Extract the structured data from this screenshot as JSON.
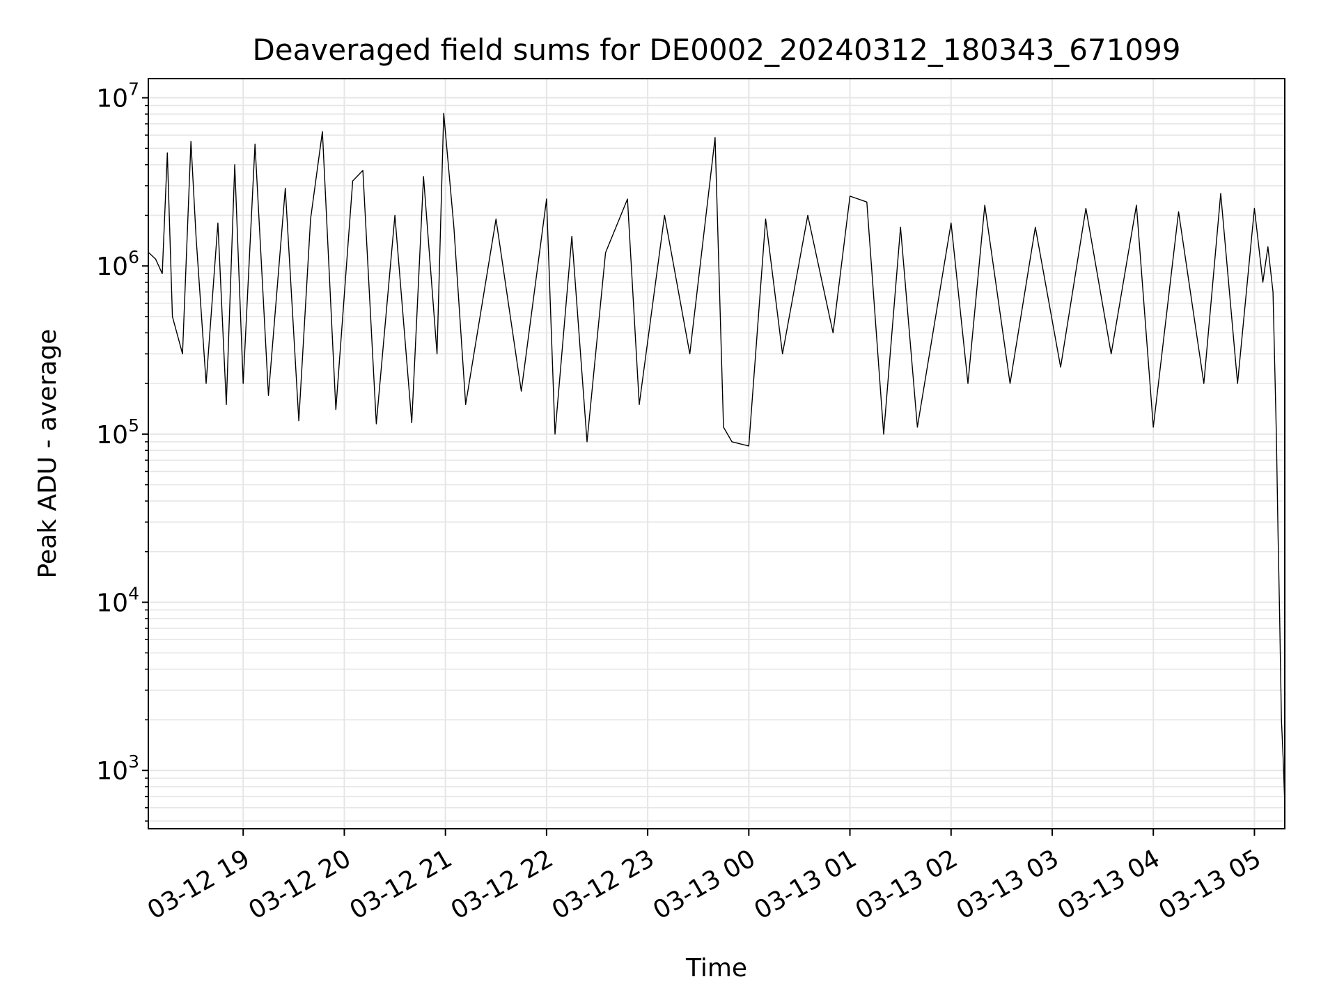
{
  "chart_data": {
    "type": "line",
    "title": "Deaveraged field sums for DE0002_20240312_180343_671099",
    "xlabel": "Time",
    "ylabel": "Peak ADU - average",
    "y_scale": "log",
    "ylim": [
      450,
      13000000
    ],
    "xlim": [
      "2024-03-12 18:03:43",
      "2024-03-13 05:18:00"
    ],
    "grid": true,
    "line_color": "#000000",
    "grid_color": "#e6e6e6",
    "x_ticks": [
      {
        "t": "2024-03-12 19:00",
        "label": "03-12 19"
      },
      {
        "t": "2024-03-12 20:00",
        "label": "03-12 20"
      },
      {
        "t": "2024-03-12 21:00",
        "label": "03-12 21"
      },
      {
        "t": "2024-03-12 22:00",
        "label": "03-12 22"
      },
      {
        "t": "2024-03-12 23:00",
        "label": "03-12 23"
      },
      {
        "t": "2024-03-13 00:00",
        "label": "03-13 00"
      },
      {
        "t": "2024-03-13 01:00",
        "label": "03-13 01"
      },
      {
        "t": "2024-03-13 02:00",
        "label": "03-13 02"
      },
      {
        "t": "2024-03-13 03:00",
        "label": "03-13 03"
      },
      {
        "t": "2024-03-13 04:00",
        "label": "03-13 04"
      },
      {
        "t": "2024-03-13 05:00",
        "label": "03-13 05"
      }
    ],
    "y_ticks": [
      {
        "value": 1000,
        "base": "10",
        "exp": "3"
      },
      {
        "value": 10000,
        "base": "10",
        "exp": "4"
      },
      {
        "value": 100000,
        "base": "10",
        "exp": "5"
      },
      {
        "value": 1000000,
        "base": "10",
        "exp": "6"
      },
      {
        "value": 10000000,
        "base": "10",
        "exp": "7"
      }
    ],
    "series": [
      {
        "points": [
          [
            "2024-03-12 18:04",
            1200000
          ],
          [
            "2024-03-12 18:08",
            1100000
          ],
          [
            "2024-03-12 18:12",
            900000
          ],
          [
            "2024-03-12 18:15",
            4700000
          ],
          [
            "2024-03-12 18:18",
            500000
          ],
          [
            "2024-03-12 18:24",
            300000
          ],
          [
            "2024-03-12 18:29",
            5500000
          ],
          [
            "2024-03-12 18:32",
            1500000
          ],
          [
            "2024-03-12 18:38",
            200000
          ],
          [
            "2024-03-12 18:45",
            1800000
          ],
          [
            "2024-03-12 18:50",
            150000
          ],
          [
            "2024-03-12 18:55",
            4000000
          ],
          [
            "2024-03-12 19:00",
            200000
          ],
          [
            "2024-03-12 19:07",
            5300000
          ],
          [
            "2024-03-12 19:15",
            170000
          ],
          [
            "2024-03-12 19:25",
            2900000
          ],
          [
            "2024-03-12 19:33",
            120000
          ],
          [
            "2024-03-12 19:40",
            1900000
          ],
          [
            "2024-03-12 19:47",
            6300000
          ],
          [
            "2024-03-12 19:55",
            140000
          ],
          [
            "2024-03-12 20:05",
            3200000
          ],
          [
            "2024-03-12 20:11",
            3700000
          ],
          [
            "2024-03-12 20:19",
            115000
          ],
          [
            "2024-03-12 20:30",
            2000000
          ],
          [
            "2024-03-12 20:40",
            117000
          ],
          [
            "2024-03-12 20:47",
            3400000
          ],
          [
            "2024-03-12 20:55",
            300000
          ],
          [
            "2024-03-12 20:59",
            8100000
          ],
          [
            "2024-03-12 21:05",
            1700000
          ],
          [
            "2024-03-12 21:12",
            150000
          ],
          [
            "2024-03-12 21:30",
            1900000
          ],
          [
            "2024-03-12 21:45",
            180000
          ],
          [
            "2024-03-12 22:00",
            2500000
          ],
          [
            "2024-03-12 22:05",
            100000
          ],
          [
            "2024-03-12 22:15",
            1500000
          ],
          [
            "2024-03-12 22:24",
            90000
          ],
          [
            "2024-03-12 22:35",
            1200000
          ],
          [
            "2024-03-12 22:48",
            2500000
          ],
          [
            "2024-03-12 22:55",
            150000
          ],
          [
            "2024-03-12 23:10",
            2000000
          ],
          [
            "2024-03-12 23:25",
            300000
          ],
          [
            "2024-03-12 23:40",
            5800000
          ],
          [
            "2024-03-12 23:45",
            110000
          ],
          [
            "2024-03-12 23:50",
            90000
          ],
          [
            "2024-03-13 00:00",
            85000
          ],
          [
            "2024-03-13 00:10",
            1900000
          ],
          [
            "2024-03-13 00:20",
            300000
          ],
          [
            "2024-03-13 00:35",
            2000000
          ],
          [
            "2024-03-13 00:50",
            400000
          ],
          [
            "2024-03-13 01:00",
            2600000
          ],
          [
            "2024-03-13 01:10",
            2400000
          ],
          [
            "2024-03-13 01:20",
            100000
          ],
          [
            "2024-03-13 01:30",
            1700000
          ],
          [
            "2024-03-13 01:40",
            110000
          ],
          [
            "2024-03-13 02:00",
            1800000
          ],
          [
            "2024-03-13 02:10",
            200000
          ],
          [
            "2024-03-13 02:20",
            2300000
          ],
          [
            "2024-03-13 02:35",
            200000
          ],
          [
            "2024-03-13 02:50",
            1700000
          ],
          [
            "2024-03-13 03:05",
            250000
          ],
          [
            "2024-03-13 03:20",
            2200000
          ],
          [
            "2024-03-13 03:35",
            300000
          ],
          [
            "2024-03-13 03:50",
            2300000
          ],
          [
            "2024-03-13 04:00",
            110000
          ],
          [
            "2024-03-13 04:15",
            2100000
          ],
          [
            "2024-03-13 04:30",
            200000
          ],
          [
            "2024-03-13 04:40",
            2700000
          ],
          [
            "2024-03-13 04:50",
            200000
          ],
          [
            "2024-03-13 05:00",
            2200000
          ],
          [
            "2024-03-13 05:05",
            800000
          ],
          [
            "2024-03-13 05:08",
            1300000
          ],
          [
            "2024-03-13 05:11",
            700000
          ],
          [
            "2024-03-13 05:13",
            100000
          ],
          [
            "2024-03-13 05:14",
            26000
          ],
          [
            "2024-03-13 05:15",
            8000
          ],
          [
            "2024-03-13 05:16",
            2000
          ],
          [
            "2024-03-13 05:17",
            1200
          ],
          [
            "2024-03-13 05:17:50",
            700
          ]
        ]
      }
    ]
  }
}
